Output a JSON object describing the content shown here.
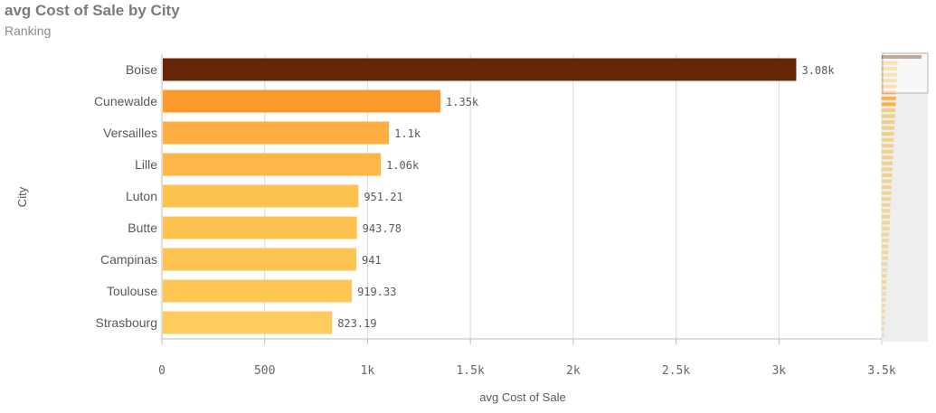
{
  "title": "avg Cost of Sale by City",
  "subtitle": "Ranking",
  "chart_data": {
    "type": "bar",
    "orientation": "horizontal",
    "xlabel": "avg Cost of Sale",
    "ylabel": "City",
    "xlim": [
      0,
      3500
    ],
    "grid": true,
    "x_ticks": [
      "0",
      "500",
      "1k",
      "1.5k",
      "2k",
      "2.5k",
      "3k",
      "3.5k"
    ],
    "x_tick_values": [
      0,
      500,
      1000,
      1500,
      2000,
      2500,
      3000,
      3500
    ],
    "categories": [
      "Boise",
      "Cunewalde",
      "Versailles",
      "Lille",
      "Luton",
      "Butte",
      "Campinas",
      "Toulouse",
      "Strasbourg"
    ],
    "values": [
      3080,
      1350,
      1100,
      1060,
      951.21,
      943.78,
      941,
      919.33,
      823.19
    ],
    "data_labels": [
      "3.08k",
      "1.35k",
      "1.1k",
      "1.06k",
      "951.21",
      "943.78",
      "941",
      "919.33",
      "823.19"
    ],
    "colors": [
      "#662506",
      "#fb9a2c",
      "#fdb041",
      "#feb747",
      "#fec24f",
      "#fec34f",
      "#fec451",
      "#fec755",
      "#fecb5f"
    ]
  }
}
